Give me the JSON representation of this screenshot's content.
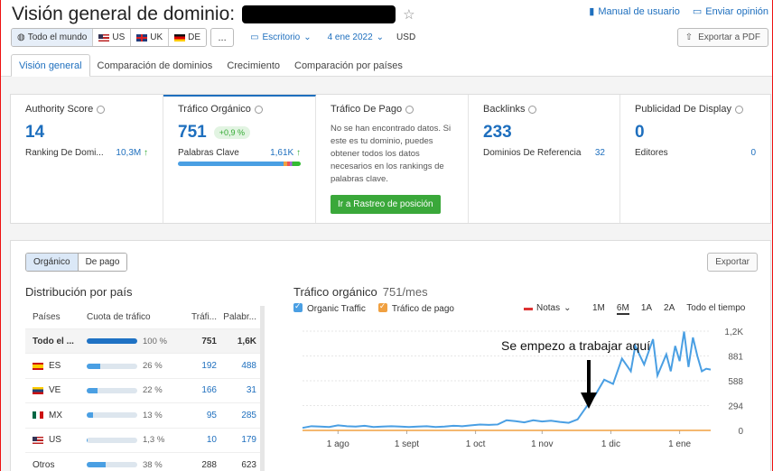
{
  "header": {
    "title": "Visión general de dominio:",
    "links": {
      "manual": "Manual de usuario",
      "feedback": "Enviar opinión"
    }
  },
  "filters": {
    "regions": [
      {
        "label": "Todo el mundo",
        "active": true
      },
      {
        "label": "US",
        "active": false
      },
      {
        "label": "UK",
        "active": false
      },
      {
        "label": "DE",
        "active": false
      }
    ],
    "more_label": "...",
    "device": "Escritorio",
    "date": "4 ene 2022",
    "currency": "USD",
    "export_pdf": "Exportar a PDF"
  },
  "tabs": [
    {
      "label": "Visión general",
      "active": true
    },
    {
      "label": "Comparación de dominios",
      "active": false
    },
    {
      "label": "Crecimiento",
      "active": false
    },
    {
      "label": "Comparación por países",
      "active": false
    }
  ],
  "metrics": {
    "authority": {
      "title": "Authority Score",
      "value": "14",
      "sub_label": "Ranking De Domi...",
      "sub_value": "10,3M",
      "sub_arrow": "↑"
    },
    "organic": {
      "title": "Tráfico Orgánico",
      "value": "751",
      "delta": "+0,9 %",
      "sub_label": "Palabras Clave",
      "sub_value": "1,61K",
      "sub_arrow": "↑"
    },
    "paid": {
      "title": "Tráfico De Pago",
      "text": "No se han encontrado datos. Si este es tu dominio, puedes obtener todos los datos necesarios en los rankings de palabras clave.",
      "button": "Ir a Rastreo de posición"
    },
    "backlinks": {
      "title": "Backlinks",
      "value": "233",
      "sub_label": "Dominios De Referencia",
      "sub_value": "32"
    },
    "display": {
      "title": "Publicidad De Display",
      "value": "0",
      "sub_label": "Editores",
      "sub_value": "0"
    }
  },
  "panel": {
    "toggle": [
      {
        "label": "Orgánico",
        "active": true
      },
      {
        "label": "De pago",
        "active": false
      }
    ],
    "export_label": "Exportar",
    "distribution": {
      "title": "Distribución por país",
      "headers": [
        "Países",
        "Cuota de tráfico",
        "Tráfi...",
        "Palabr..."
      ],
      "rows": [
        {
          "country": "Todo el ...",
          "flag": "",
          "share": 100,
          "share_label": "100 %",
          "traffic": "751",
          "keywords": "1,6K",
          "total": true
        },
        {
          "country": "ES",
          "flag": "es",
          "share": 26,
          "share_label": "26 %",
          "traffic": "192",
          "keywords": "488"
        },
        {
          "country": "VE",
          "flag": "ve",
          "share": 22,
          "share_label": "22 %",
          "traffic": "166",
          "keywords": "31"
        },
        {
          "country": "MX",
          "flag": "mx",
          "share": 13,
          "share_label": "13 %",
          "traffic": "95",
          "keywords": "285"
        },
        {
          "country": "US",
          "flag": "us",
          "share": 1.3,
          "share_label": "1,3 %",
          "traffic": "10",
          "keywords": "179"
        },
        {
          "country": "Otros",
          "flag": "",
          "share": 38,
          "share_label": "38 %",
          "traffic": "288",
          "keywords": "623"
        }
      ]
    },
    "traffic": {
      "title": "Tráfico orgánico",
      "value": "751/mes",
      "legend": [
        {
          "label": "Organic Traffic",
          "color": "#4a9fe3"
        },
        {
          "label": "Tráfico de pago",
          "color": "#f0a040"
        }
      ],
      "notes_label": "Notas",
      "ranges": [
        {
          "label": "1M",
          "active": false
        },
        {
          "label": "6M",
          "active": true
        },
        {
          "label": "1A",
          "active": false
        },
        {
          "label": "2A",
          "active": false
        },
        {
          "label": "Todo el tiempo",
          "active": false
        }
      ],
      "annotation": "Se empezo a trabajar aquí"
    }
  },
  "chart_data": {
    "type": "line",
    "x_ticks": [
      "1 ago",
      "1 sept",
      "1 oct",
      "1 nov",
      "1 dic",
      "1 ene"
    ],
    "y_ticks": [
      "0",
      "294",
      "588",
      "881",
      "1,2K"
    ],
    "ylim": [
      0,
      1175
    ],
    "series": [
      {
        "name": "Organic Traffic",
        "color": "#4a9fe3",
        "x": [
          0,
          4,
          8,
          12,
          16,
          20,
          24,
          28,
          32,
          36,
          40,
          44,
          48,
          52,
          56,
          60,
          64,
          68,
          72,
          76,
          80,
          84,
          88,
          92,
          96,
          100,
          104,
          108,
          112,
          116,
          120,
          124,
          128,
          132,
          136,
          140,
          144,
          148,
          150,
          154,
          158,
          160,
          164,
          166,
          168,
          170,
          172,
          174,
          176,
          178,
          180,
          182,
          184
        ],
        "values": [
          30,
          50,
          45,
          40,
          60,
          50,
          45,
          55,
          40,
          45,
          50,
          45,
          40,
          45,
          50,
          40,
          45,
          55,
          50,
          60,
          70,
          65,
          70,
          120,
          110,
          95,
          120,
          105,
          115,
          100,
          90,
          130,
          280,
          420,
          600,
          550,
          850,
          700,
          1000,
          780,
          1080,
          650,
          900,
          700,
          1000,
          820,
          1170,
          750,
          1100,
          880,
          700,
          730,
          720
        ]
      },
      {
        "name": "Tráfico de pago",
        "color": "#f0a040",
        "x": [
          0,
          184
        ],
        "values": [
          0,
          0
        ]
      }
    ]
  }
}
